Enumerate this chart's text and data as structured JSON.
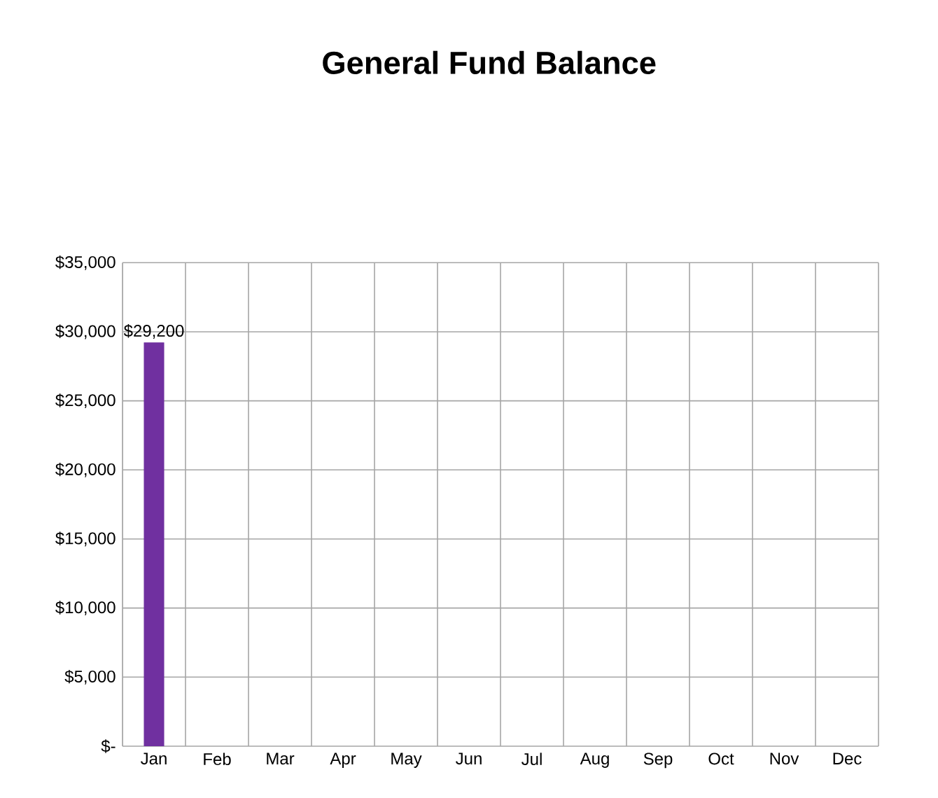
{
  "chart_data": {
    "type": "bar",
    "title": "General Fund Balance",
    "categories": [
      "Jan",
      "Feb",
      "Mar",
      "Apr",
      "May",
      "Jun",
      "Jul",
      "Aug",
      "Sep",
      "Oct",
      "Nov",
      "Dec"
    ],
    "values": [
      29200,
      null,
      null,
      null,
      null,
      null,
      null,
      null,
      null,
      null,
      null,
      null
    ],
    "value_labels": [
      "$29,200",
      null,
      null,
      null,
      null,
      null,
      null,
      null,
      null,
      null,
      null,
      null
    ],
    "color": "#7030a0",
    "ylim": [
      0,
      35000
    ],
    "yticks": [
      {
        "value": 0,
        "label": "$-"
      },
      {
        "value": 5000,
        "label": "$5,000"
      },
      {
        "value": 10000,
        "label": "$10,000"
      },
      {
        "value": 15000,
        "label": "$15,000"
      },
      {
        "value": 20000,
        "label": "$20,000"
      },
      {
        "value": 25000,
        "label": "$25,000"
      },
      {
        "value": 30000,
        "label": "$30,000"
      },
      {
        "value": 35000,
        "label": "$35,000"
      }
    ],
    "grid": true
  }
}
